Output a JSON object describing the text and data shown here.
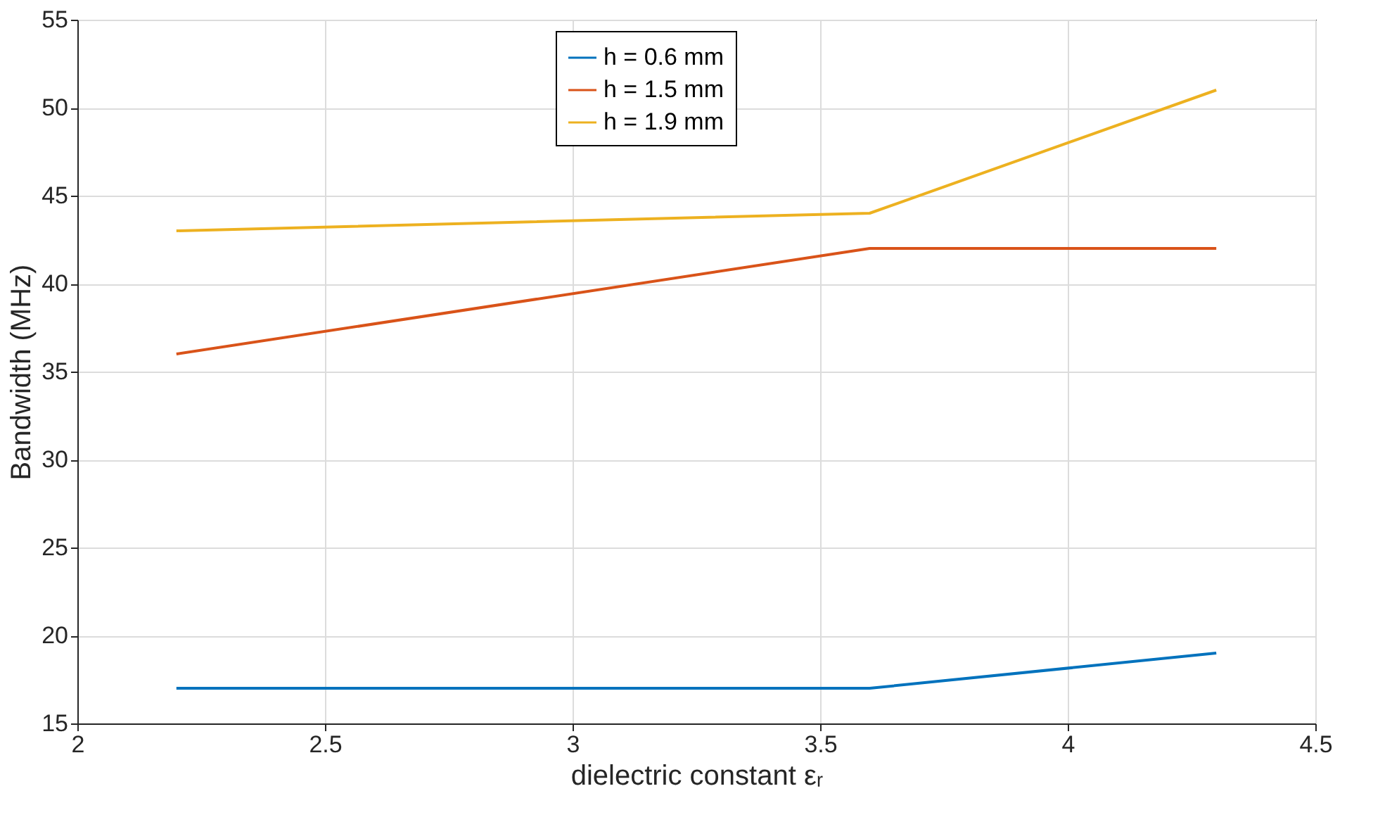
{
  "chart_data": {
    "type": "line",
    "xlabel": "dielectric constant  εᵣ",
    "ylabel": "Bandwidth  (MHz)",
    "x": [
      2.2,
      3.6,
      4.3
    ],
    "series": [
      {
        "name": "h = 0.6 mm",
        "color": "#0072bd",
        "values": [
          17,
          17,
          19
        ]
      },
      {
        "name": "h = 1.5 mm",
        "color": "#d95319",
        "values": [
          36,
          42,
          42
        ]
      },
      {
        "name": "h = 1.9 mm",
        "color": "#edb120",
        "values": [
          43,
          44,
          51
        ]
      }
    ],
    "xlim": [
      2,
      4.5
    ],
    "xticks": [
      2,
      2.5,
      3,
      3.5,
      4,
      4.5
    ],
    "ylim": [
      15,
      55
    ],
    "yticks": [
      15,
      20,
      25,
      30,
      35,
      40,
      45,
      50,
      55
    ],
    "grid": true,
    "legend": "top",
    "marker": "none",
    "line_style": "solid"
  }
}
